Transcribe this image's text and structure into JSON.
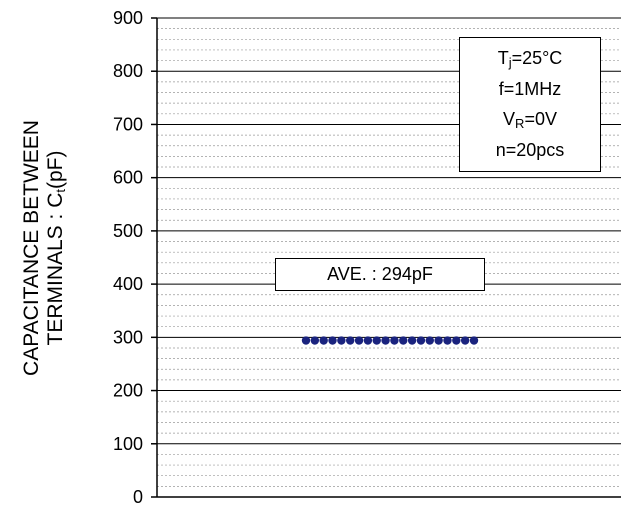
{
  "chart_data": {
    "type": "scatter",
    "title": "",
    "ylabel": {
      "main": "CAPACITANCE BETWEEN",
      "line2_prefix": "TERMINALS : C",
      "line2_sub": "t",
      "line2_suffix": "(pF)"
    },
    "xlabel": "",
    "ylim": [
      0,
      900
    ],
    "yticks": [
      0,
      100,
      200,
      300,
      400,
      500,
      600,
      700,
      800,
      900
    ],
    "y_minor_step": 20,
    "grid": true,
    "point_color": "#1a237e",
    "points": [
      {
        "y": 294
      },
      {
        "y": 294
      },
      {
        "y": 294
      },
      {
        "y": 294
      },
      {
        "y": 294
      },
      {
        "y": 294
      },
      {
        "y": 294
      },
      {
        "y": 294
      },
      {
        "y": 294
      },
      {
        "y": 294
      },
      {
        "y": 294
      },
      {
        "y": 294
      },
      {
        "y": 294
      },
      {
        "y": 294
      },
      {
        "y": 294
      },
      {
        "y": 294
      },
      {
        "y": 294
      },
      {
        "y": 294
      },
      {
        "y": 294
      },
      {
        "y": 294
      }
    ],
    "annotations": {
      "average": "AVE. : 294pF",
      "conditions": {
        "tj_prefix": "T",
        "tj_sub": "j",
        "tj_suffix": "=25°C",
        "freq": "f=1MHz",
        "vr_prefix": "V",
        "vr_sub": "R",
        "vr_suffix": "=0V",
        "n": "n=20pcs"
      }
    }
  }
}
